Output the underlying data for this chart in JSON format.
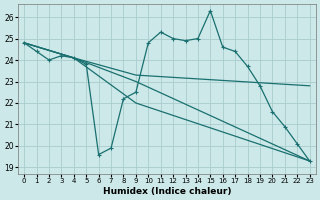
{
  "xlabel": "Humidex (Indice chaleur)",
  "bg_color": "#cce8e8",
  "grid_color": "#aacccc",
  "line_color": "#1a7070",
  "xlim": [
    -0.5,
    23.5
  ],
  "ylim": [
    18.7,
    26.6
  ],
  "yticks": [
    19,
    20,
    21,
    22,
    23,
    24,
    25,
    26
  ],
  "xticks": [
    0,
    1,
    2,
    3,
    4,
    5,
    6,
    7,
    8,
    9,
    10,
    11,
    12,
    13,
    14,
    15,
    16,
    17,
    18,
    19,
    20,
    21,
    22,
    23
  ],
  "series1_x": [
    0,
    1,
    2,
    3,
    4,
    5,
    6,
    7,
    8,
    9,
    10,
    11,
    12,
    13,
    14,
    15,
    16,
    17,
    18,
    19,
    20,
    21,
    22,
    23
  ],
  "series1_y": [
    24.8,
    24.4,
    24.0,
    24.2,
    24.1,
    23.8,
    19.6,
    19.9,
    22.2,
    22.5,
    24.8,
    25.3,
    25.0,
    24.9,
    25.0,
    26.3,
    24.6,
    24.4,
    23.7,
    22.8,
    21.6,
    20.9,
    20.1,
    19.3
  ],
  "series2_x": [
    0,
    4,
    9,
    23
  ],
  "series2_y": [
    24.8,
    24.1,
    23.3,
    22.8
  ],
  "series3_x": [
    0,
    4,
    9,
    23
  ],
  "series3_y": [
    24.8,
    24.1,
    23.0,
    19.3
  ],
  "series4_x": [
    0,
    4,
    9,
    23
  ],
  "series4_y": [
    24.8,
    24.1,
    22.0,
    19.3
  ]
}
